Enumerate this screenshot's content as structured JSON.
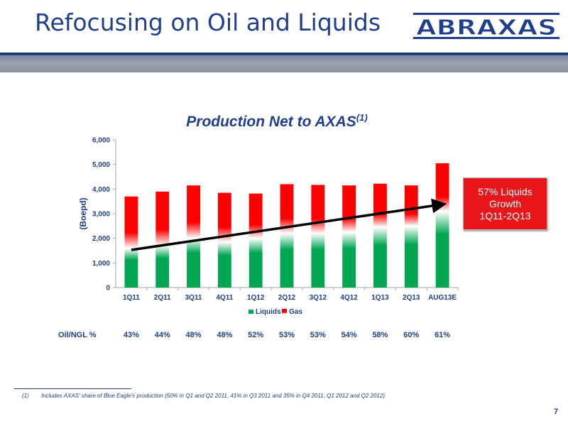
{
  "slide": {
    "title": "Refocusing on Oil and Liquids",
    "logo_text": "ABRAXAS",
    "page_number": "7"
  },
  "chart_data": {
    "type": "bar",
    "stacked": true,
    "title": "Production Net to AXAS",
    "title_superscript": "(1)",
    "ylabel": "(Boepd)",
    "xlabel": "",
    "ylim": [
      0,
      6000
    ],
    "yticks": [
      "0",
      "1,000",
      "2,000",
      "3,000",
      "4,000",
      "5,000",
      "6,000"
    ],
    "categories": [
      "1Q11",
      "2Q11",
      "3Q11",
      "4Q11",
      "1Q12",
      "2Q12",
      "3Q12",
      "4Q12",
      "1Q13",
      "2Q13",
      "AUG13E"
    ],
    "series": [
      {
        "name": "Liquids",
        "color": "#00a651",
        "values": [
          1600,
          1700,
          2000,
          1850,
          2000,
          2200,
          2200,
          2250,
          2450,
          2500,
          3100
        ]
      },
      {
        "name": "Gas",
        "color": "#ff0000",
        "values": [
          2100,
          2200,
          2150,
          2000,
          1820,
          2000,
          1970,
          1900,
          1770,
          1650,
          1950
        ]
      }
    ],
    "legend_position": "bottom",
    "grid": false,
    "trend_arrow": {
      "from": {
        "category": "1Q11",
        "value": 1530
      },
      "to": {
        "category": "AUG13E",
        "value": 3380
      }
    }
  },
  "callout": {
    "lines": [
      "57% Liquids",
      "Growth",
      "1Q11-2Q13"
    ]
  },
  "oil_ngl": {
    "label": "Oil/NGL %",
    "values": [
      "43%",
      "44%",
      "48%",
      "48%",
      "52%",
      "53%",
      "53%",
      "54%",
      "58%",
      "60%",
      "61%"
    ]
  },
  "footnote": {
    "marker": "(1)",
    "text": "Includes AXAS' share of Blue Eagle's production (50% in Q1 and Q2 2011, 41% in Q3 2011 and 35% in Q4 2011, Q1 2012 and Q2 2012)"
  },
  "colors": {
    "brand_blue": "#1f3f8c",
    "callout_red": "#e8161b"
  }
}
